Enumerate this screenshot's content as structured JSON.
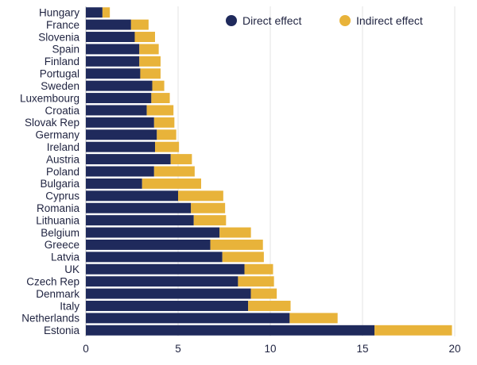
{
  "chart_data": {
    "type": "bar",
    "orientation": "horizontal",
    "stacked": true,
    "title": "",
    "xlabel": "",
    "ylabel": "",
    "xlim": [
      0,
      20
    ],
    "xticks": [
      0,
      5,
      10,
      15,
      20
    ],
    "grid": "vertical",
    "legend_position": "top-right",
    "categories": [
      "Hungary",
      "France",
      "Slovenia",
      "Spain",
      "Finland",
      "Portugal",
      "Sweden",
      "Luxembourg",
      "Croatia",
      "Slovak Rep",
      "Germany",
      "Ireland",
      "Austria",
      "Poland",
      "Bulgaria",
      "Cyprus",
      "Romania",
      "Lithuania",
      "Belgium",
      "Greece",
      "Latvia",
      "UK",
      "Czech Rep",
      "Denmark",
      "Italy",
      "Netherlands",
      "Estonia"
    ],
    "series": [
      {
        "name": "Direct effect",
        "color": "#1f2a5c",
        "values": [
          0.9,
          2.45,
          2.65,
          2.9,
          2.9,
          2.95,
          3.6,
          3.55,
          3.3,
          3.7,
          3.85,
          3.75,
          4.6,
          3.7,
          3.05,
          5.0,
          5.7,
          5.85,
          7.25,
          6.75,
          7.4,
          8.6,
          8.25,
          8.95,
          8.8,
          11.05,
          15.65
        ]
      },
      {
        "name": "Indirect effect",
        "color": "#e8b33a",
        "values": [
          0.4,
          0.95,
          1.1,
          1.05,
          1.15,
          1.1,
          0.65,
          1.0,
          1.45,
          1.1,
          1.05,
          1.3,
          1.15,
          2.2,
          3.2,
          2.45,
          1.85,
          1.75,
          1.7,
          2.85,
          2.25,
          1.55,
          1.95,
          1.4,
          2.3,
          2.6,
          4.2
        ]
      }
    ]
  }
}
